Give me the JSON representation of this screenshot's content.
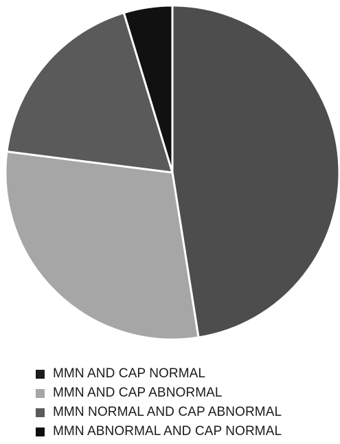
{
  "chart_data": {
    "type": "pie",
    "title": "",
    "slices": [
      {
        "label": "MMN AND CAP NORMAL",
        "value": 47.5,
        "color": "#4d4d4d",
        "legend_color": "#1c1c1c"
      },
      {
        "label": "MMN AND CAP ABNORMAL",
        "value": 29.5,
        "color": "#a6a6a6",
        "legend_color": "#a6a6a6"
      },
      {
        "label": "MMN NORMAL AND CAP ABNORMAL",
        "value": 18.3,
        "color": "#5a5a5a",
        "legend_color": "#5a5a5a"
      },
      {
        "label": "MMN ABNORMAL AND CAP NORMAL",
        "value": 4.7,
        "color": "#111111",
        "legend_color": "#0d0d0d"
      }
    ],
    "start_angle_deg": 0,
    "direction": "clockwise",
    "legend_position": "bottom"
  }
}
